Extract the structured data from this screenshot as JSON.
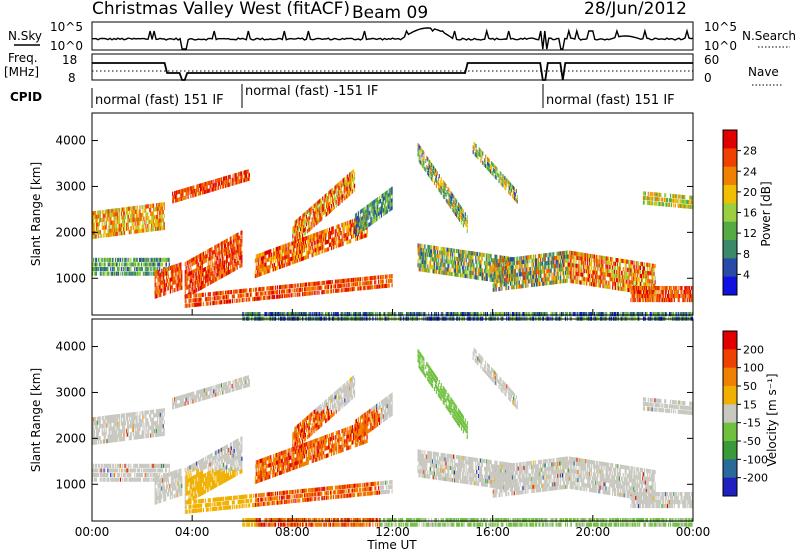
{
  "header": {
    "title": "Christmas Valley West (fitACF)",
    "beam": "Beam 09",
    "date": "28/Jun/2012"
  },
  "top_panels": {
    "nsky_label": "N.Sky",
    "nsearch_label": "N.Search",
    "noise_ticks": [
      "10^5",
      "10^0"
    ],
    "noise_ticks_right": [
      "10^5",
      "10^0"
    ],
    "freq_label": "Freq.",
    "freq_unit": "[MHz]",
    "freq_ticks": [
      "18",
      "8"
    ],
    "nave_label": "Nave",
    "nave_ticks": [
      "60",
      "0"
    ],
    "cpid_label": "CPID",
    "cpid_segments": [
      {
        "text": "normal (fast) 151 IF",
        "start_hour": 0,
        "end_hour": 6
      },
      {
        "text": "normal (fast) -151 IF",
        "start_hour": 6,
        "end_hour": 18
      },
      {
        "text": "normal (fast) 151 IF",
        "start_hour": 18,
        "end_hour": 24
      }
    ]
  },
  "colors": {
    "power_scale": [
      "#1010e0",
      "#2a4aa8",
      "#3a8a6a",
      "#55aa44",
      "#9ad040",
      "#f0c000",
      "#f08000",
      "#f04000",
      "#e00000"
    ],
    "velocity_scale": [
      "#2020c0",
      "#2a6a9a",
      "#3a9a3a",
      "#70c040",
      "#c8c8c0",
      "#f0b000",
      "#f08000",
      "#f04000",
      "#e00000"
    ]
  },
  "chart_data": [
    {
      "type": "heatmap",
      "title": "",
      "ylabel": "Slant Range [km]",
      "xlabel": "",
      "xlim": [
        0,
        24
      ],
      "ylim": [
        200,
        4600
      ],
      "yticks": [
        "1000",
        "2000",
        "3000",
        "4000"
      ],
      "colorbar_label": "Power [dB]",
      "colorbar_ticks": [
        "4",
        "8",
        "12",
        "16",
        "20",
        "24",
        "28"
      ],
      "colorbar_range": [
        0,
        30
      ]
    },
    {
      "type": "heatmap",
      "title": "",
      "ylabel": "Slant Range [km]",
      "xlabel": "Time UT",
      "xlim": [
        0,
        24
      ],
      "ylim": [
        200,
        4600
      ],
      "yticks": [
        "1000",
        "2000",
        "3000",
        "4000"
      ],
      "xticks": [
        "00:00",
        "04:00",
        "08:00",
        "12:00",
        "16:00",
        "20:00",
        "00:00"
      ],
      "colorbar_label": "Velocity [m s⁻¹]",
      "colorbar_ticks": [
        "200",
        "100",
        "50",
        "15",
        "-15",
        "-50",
        "-100",
        "-200"
      ]
    }
  ]
}
